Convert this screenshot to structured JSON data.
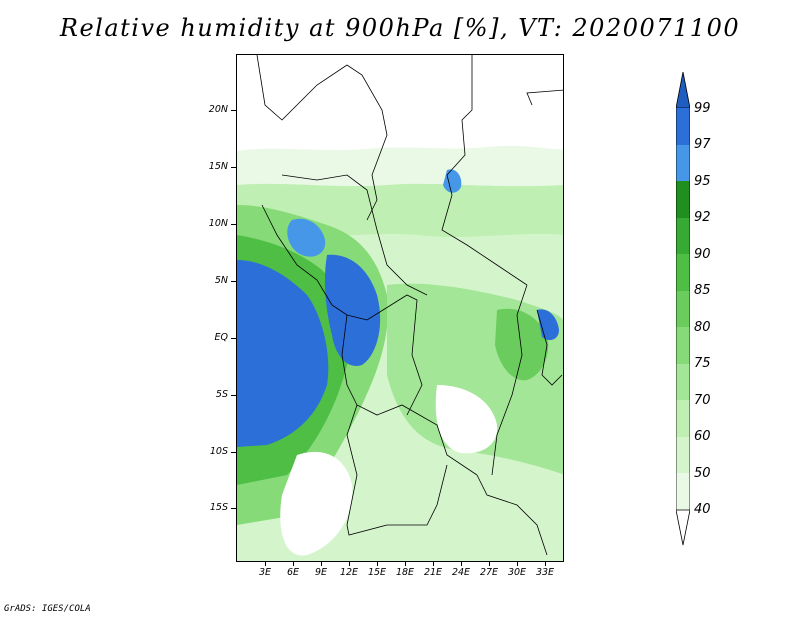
{
  "title": "Relative humidity at 900hPa [%], VT: 2020071100",
  "footer": "GrADS: IGES/COLA",
  "lat_labels": [
    "20N",
    "15N",
    "10N",
    "5N",
    "EQ",
    "5S",
    "10S",
    "15S"
  ],
  "lon_labels": [
    "3E",
    "6E",
    "9E",
    "12E",
    "15E",
    "18E",
    "21E",
    "24E",
    "27E",
    "30E",
    "33E"
  ],
  "colorbar": {
    "labels": [
      "99",
      "97",
      "95",
      "92",
      "90",
      "85",
      "80",
      "75",
      "70",
      "60",
      "50",
      "40"
    ],
    "colors": {
      "below_40": "#ffffff",
      "40-50": "#eaf8e6",
      "50-60": "#d4f5cc",
      "60-70": "#bfefb2",
      "70-75": "#a4e697",
      "75-80": "#86da78",
      "80-85": "#6acc5c",
      "85-90": "#4fbe45",
      "90-92": "#37aa33",
      "92-95": "#208f20",
      "95-97": "#4697e8",
      "97-99": "#2c6fd8",
      "above_99": "#1f5dc0"
    }
  }
}
